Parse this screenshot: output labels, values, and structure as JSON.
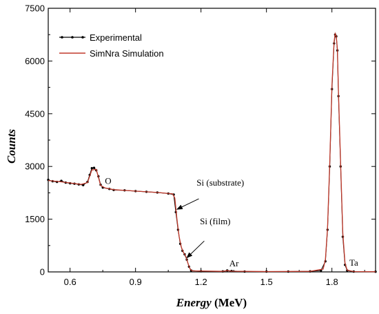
{
  "chart_data": {
    "type": "line",
    "xlabel_main": "Energy",
    "xlabel_unit": " (MeV)",
    "ylabel": "Counts",
    "xlim": [
      0.5,
      2.0
    ],
    "ylim": [
      0,
      7500
    ],
    "xticks": [
      0.6,
      0.9,
      1.2,
      1.5,
      1.8
    ],
    "xtick_labels": [
      "0.6",
      "0.9",
      "1.2",
      "1.5",
      "1.8"
    ],
    "yticks": [
      0,
      1500,
      3000,
      4500,
      6000,
      7500
    ],
    "ytick_labels": [
      "0",
      "1500",
      "3000",
      "4500",
      "6000",
      "7500"
    ],
    "grid": false,
    "legend_position": "top-left",
    "series": [
      {
        "name": "Experimental",
        "color": "#000000",
        "marker": "dot",
        "points": [
          [
            0.5,
            2620
          ],
          [
            0.52,
            2580
          ],
          [
            0.54,
            2560
          ],
          [
            0.56,
            2590
          ],
          [
            0.58,
            2540
          ],
          [
            0.6,
            2520
          ],
          [
            0.62,
            2510
          ],
          [
            0.64,
            2490
          ],
          [
            0.66,
            2470
          ],
          [
            0.68,
            2560
          ],
          [
            0.69,
            2760
          ],
          [
            0.7,
            2950
          ],
          [
            0.71,
            2960
          ],
          [
            0.72,
            2890
          ],
          [
            0.73,
            2720
          ],
          [
            0.74,
            2480
          ],
          [
            0.75,
            2400
          ],
          [
            0.78,
            2360
          ],
          [
            0.8,
            2330
          ],
          [
            0.85,
            2320
          ],
          [
            0.9,
            2300
          ],
          [
            0.95,
            2280
          ],
          [
            1.0,
            2260
          ],
          [
            1.05,
            2230
          ],
          [
            1.075,
            2200
          ],
          [
            1.085,
            1700
          ],
          [
            1.095,
            1200
          ],
          [
            1.105,
            800
          ],
          [
            1.115,
            600
          ],
          [
            1.125,
            500
          ],
          [
            1.135,
            350
          ],
          [
            1.145,
            150
          ],
          [
            1.155,
            40
          ],
          [
            1.2,
            20
          ],
          [
            1.3,
            15
          ],
          [
            1.32,
            40
          ],
          [
            1.34,
            25
          ],
          [
            1.4,
            10
          ],
          [
            1.5,
            10
          ],
          [
            1.6,
            10
          ],
          [
            1.7,
            15
          ],
          [
            1.75,
            40
          ],
          [
            1.77,
            300
          ],
          [
            1.78,
            1200
          ],
          [
            1.79,
            3000
          ],
          [
            1.8,
            5200
          ],
          [
            1.81,
            6500
          ],
          [
            1.815,
            6750
          ],
          [
            1.82,
            6700
          ],
          [
            1.825,
            6300
          ],
          [
            1.83,
            5000
          ],
          [
            1.84,
            3000
          ],
          [
            1.85,
            1000
          ],
          [
            1.86,
            200
          ],
          [
            1.87,
            40
          ],
          [
            1.9,
            10
          ],
          [
            2.0,
            5
          ]
        ]
      },
      {
        "name": "SimNra Simulation",
        "color": "#c0392b",
        "marker": "none",
        "points": [
          [
            0.5,
            2600
          ],
          [
            0.55,
            2570
          ],
          [
            0.6,
            2530
          ],
          [
            0.65,
            2490
          ],
          [
            0.68,
            2540
          ],
          [
            0.7,
            2900
          ],
          [
            0.72,
            2920
          ],
          [
            0.74,
            2460
          ],
          [
            0.76,
            2390
          ],
          [
            0.8,
            2340
          ],
          [
            0.9,
            2300
          ],
          [
            1.0,
            2260
          ],
          [
            1.07,
            2220
          ],
          [
            1.08,
            2100
          ],
          [
            1.09,
            1500
          ],
          [
            1.1,
            1000
          ],
          [
            1.11,
            700
          ],
          [
            1.12,
            550
          ],
          [
            1.13,
            450
          ],
          [
            1.14,
            250
          ],
          [
            1.15,
            80
          ],
          [
            1.16,
            30
          ],
          [
            1.3,
            15
          ],
          [
            1.32,
            35
          ],
          [
            1.34,
            20
          ],
          [
            1.5,
            10
          ],
          [
            1.7,
            15
          ],
          [
            1.76,
            80
          ],
          [
            1.77,
            350
          ],
          [
            1.78,
            1250
          ],
          [
            1.79,
            3100
          ],
          [
            1.8,
            5300
          ],
          [
            1.81,
            6550
          ],
          [
            1.815,
            6780
          ],
          [
            1.82,
            6700
          ],
          [
            1.825,
            6350
          ],
          [
            1.83,
            5100
          ],
          [
            1.84,
            3100
          ],
          [
            1.85,
            1100
          ],
          [
            1.86,
            250
          ],
          [
            1.87,
            50
          ],
          [
            1.9,
            10
          ],
          [
            2.0,
            5
          ]
        ]
      }
    ],
    "annotations": [
      {
        "text": "O",
        "x": 0.76,
        "y": 2500
      },
      {
        "text": "Si (substrate)",
        "x": 1.18,
        "y": 2450
      },
      {
        "text": "Si (film)",
        "x": 1.195,
        "y": 1350
      },
      {
        "text": "Ar",
        "x": 1.33,
        "y": 160
      },
      {
        "text": "Ta",
        "x": 1.88,
        "y": 180
      }
    ],
    "arrows": [
      {
        "from": [
          1.19,
          2080
        ],
        "to": [
          1.09,
          1780
        ]
      },
      {
        "from": [
          1.215,
          880
        ],
        "to": [
          1.135,
          400
        ]
      }
    ]
  }
}
